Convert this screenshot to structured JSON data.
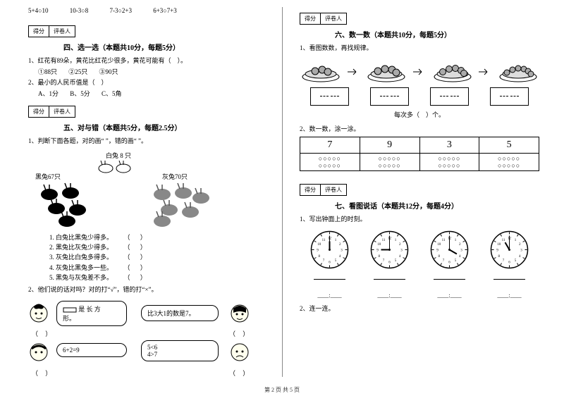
{
  "colors": {
    "text": "#000000",
    "bg": "#ffffff",
    "divider": "#888888"
  },
  "font": {
    "family": "SimSun",
    "base_size": 9,
    "title_size": 10
  },
  "compare": {
    "items": [
      "5+4○10",
      "10-3○8",
      "7-3○2+3",
      "6+3○7+3"
    ]
  },
  "scorebox": {
    "label_score": "得分",
    "label_reviewer": "评卷人"
  },
  "sec4": {
    "title": "四、选一选（本题共10分，每题5分）",
    "q1": "1、红花有89朵，黄花比红花少很多，黄花可能有（　）。",
    "q1_opts": [
      "①88只",
      "②25只",
      "③90只"
    ],
    "q2": "2、最小的人民币值是（　）",
    "q2_opts": [
      "A、1分",
      "B、5分",
      "C、5角"
    ]
  },
  "sec5": {
    "title": "五、对与错（本题共5分，每题2.5分）",
    "intro": "1、判断下面各题，对的画“ ”，错的画“ ”。",
    "labels": {
      "white": "白兔 8 只",
      "black": "黑兔67只",
      "grey": "灰兔70只"
    },
    "lines": [
      "1. 白兔比黑兔少得多。",
      "2. 黑兔比灰兔少得多。",
      "3. 灰兔比白兔多得多。",
      "4. 灰兔比黑兔多一些。",
      "5. 黑兔与灰兔差不多。"
    ],
    "q2": "2、他们说的话对吗？对的打“√”，错的打“×”。",
    "bubbles": {
      "b1a": "是 长 方",
      "b1b": "形。",
      "b2": "比3大1的数是7。",
      "b3": "6+2=9",
      "b4a": "5<6",
      "b4b": "4>7"
    }
  },
  "sec6": {
    "title": "六、数一数（本题共10分，每题5分）",
    "q1": "1、看图数数，再找规律。",
    "pattern": "每次多（　）个。",
    "q2": "2、数一数，涂一涂。",
    "table": {
      "nums": [
        "7",
        "9",
        "3",
        "5"
      ],
      "zeros": "○○○○○"
    }
  },
  "sec7": {
    "title": "七、看图说话（本题共12分，每题4分）",
    "q1": "1、写出钟面上的时刻。",
    "clocks": [
      {
        "h": 12,
        "m": 0
      },
      {
        "h": 9,
        "m": 0
      },
      {
        "h": 4,
        "m": 0
      },
      {
        "h": 11,
        "m": 0
      }
    ],
    "q2": "2、连一连。",
    "colon_blank": "____:____"
  },
  "footer": "第 2 页 共 5 页"
}
